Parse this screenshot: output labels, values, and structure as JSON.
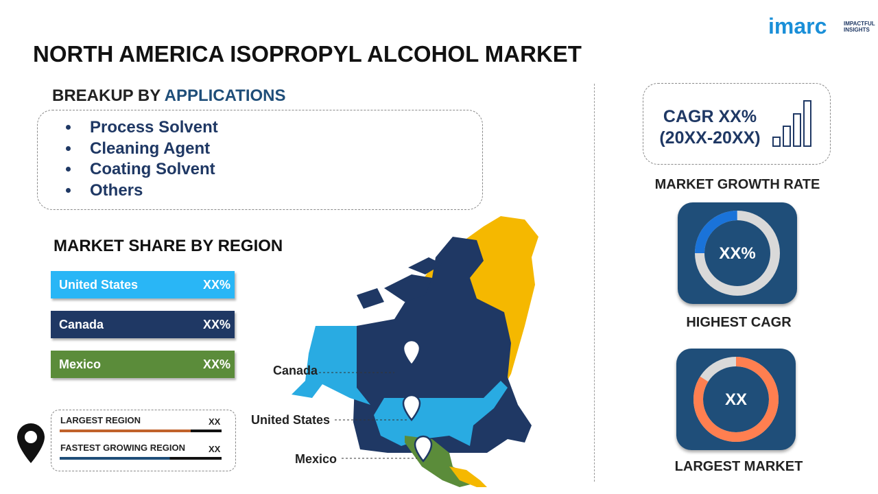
{
  "logo": {
    "brand": "imarc",
    "tagline": "IMPACTFUL INSIGHTS"
  },
  "title": "NORTH AMERICA ISOPROPYL ALCOHOL MARKET",
  "breakup": {
    "heading_prefix": "BREAKUP BY",
    "heading_highlight": "APPLICATIONS",
    "items": [
      "Process Solvent",
      "Cleaning Agent",
      "Coating Solvent",
      "Others"
    ]
  },
  "region_share": {
    "heading": "MARKET SHARE BY REGION",
    "rows": [
      {
        "name": "United States",
        "value": "XX%"
      },
      {
        "name": "Canada",
        "value": "XX%"
      },
      {
        "name": "Mexico",
        "value": "XX%"
      }
    ]
  },
  "legend": [
    {
      "label": "LARGEST REGION",
      "value": "XX"
    },
    {
      "label": "FASTEST GROWING REGION",
      "value": "XX"
    }
  ],
  "map_labels": {
    "canada": "Canada",
    "us": "United States",
    "mexico": "Mexico"
  },
  "cagr": {
    "line1": "CAGR XX%",
    "line2": "(20XX-20XX)",
    "caption": "MARKET GROWTH RATE"
  },
  "highest_cagr": {
    "value": "XX%",
    "caption": "HIGHEST CAGR"
  },
  "largest_market": {
    "value": "XX",
    "caption": "LARGEST MARKET"
  }
}
